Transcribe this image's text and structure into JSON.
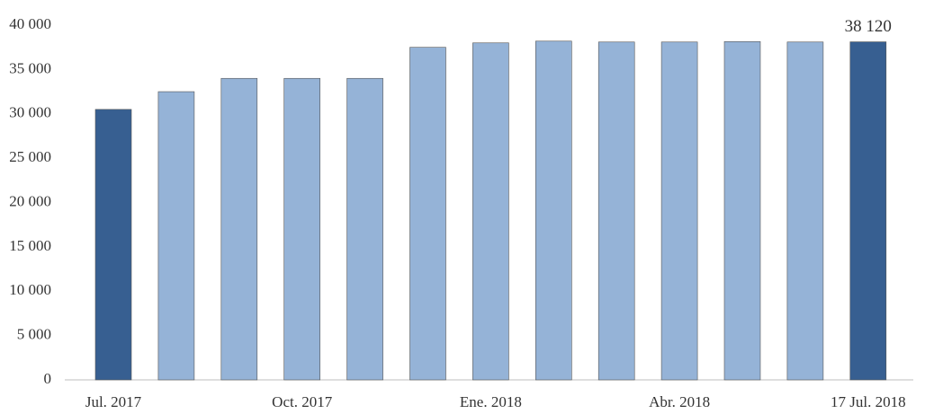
{
  "chart_data": {
    "type": "bar",
    "categories": [
      "Jul. 2017",
      null,
      null,
      "Oct. 2017",
      null,
      null,
      "Ene. 2018",
      null,
      null,
      "Abr. 2018",
      null,
      null,
      "17 Jul. 2018"
    ],
    "values": [
      30500,
      32500,
      34000,
      34000,
      34000,
      37500,
      38000,
      38200,
      38100,
      38100,
      38150,
      38100,
      38120
    ],
    "value_labels": [
      null,
      null,
      null,
      null,
      null,
      null,
      null,
      null,
      null,
      null,
      null,
      null,
      "38 120"
    ],
    "colors": [
      "#375f91",
      "#95b3d7",
      "#95b3d7",
      "#95b3d7",
      "#95b3d7",
      "#95b3d7",
      "#95b3d7",
      "#95b3d7",
      "#95b3d7",
      "#95b3d7",
      "#95b3d7",
      "#95b3d7",
      "#375f91"
    ],
    "ylim": [
      0,
      40000
    ],
    "yticks": [
      0,
      {
        "value": 5000,
        "label": "5 000"
      },
      {
        "value": 10000,
        "label": "10 000"
      },
      {
        "value": 15000,
        "label": "15 000"
      },
      {
        "value": 20000,
        "label": "20 000"
      },
      {
        "value": 25000,
        "label": "25 000"
      },
      {
        "value": 30000,
        "label": "30 000"
      },
      {
        "value": 35000,
        "label": "35 000"
      },
      {
        "value": 40000,
        "label": "40 000"
      }
    ],
    "grid": false
  }
}
